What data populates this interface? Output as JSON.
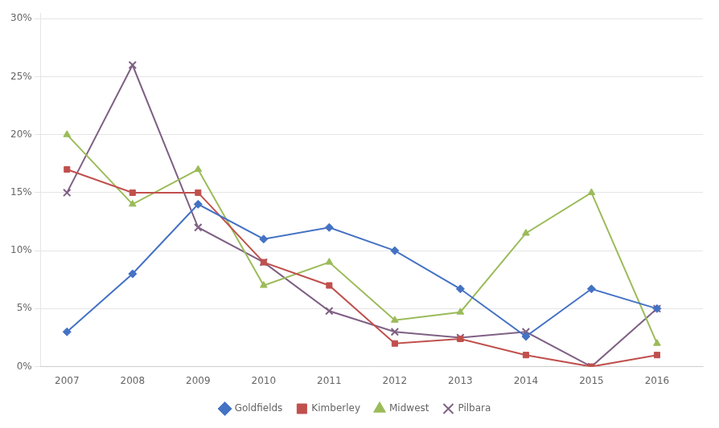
{
  "chart_data": {
    "type": "line",
    "x": [
      2007,
      2008,
      2009,
      2010,
      2011,
      2012,
      2013,
      2014,
      2015,
      2016
    ],
    "series": [
      {
        "name": "Goldfields",
        "color": "#4472C4",
        "marker": "diamond",
        "values": [
          0.03,
          0.08,
          0.14,
          0.11,
          0.12,
          0.1,
          0.067,
          0.026,
          0.067,
          0.05
        ]
      },
      {
        "name": "Kimberley",
        "color": "#C0504D",
        "marker": "square",
        "values": [
          0.17,
          0.15,
          0.15,
          0.09,
          0.07,
          0.02,
          0.024,
          0.01,
          0.0,
          0.01
        ]
      },
      {
        "name": "Midwest",
        "color": "#9BBB59",
        "marker": "triangle",
        "values": [
          0.2,
          0.14,
          0.17,
          0.07,
          0.09,
          0.04,
          0.047,
          0.115,
          0.15,
          0.02
        ]
      },
      {
        "name": "Pilbara",
        "color": "#7F6084",
        "marker": "x",
        "values": [
          0.15,
          0.26,
          0.12,
          0.09,
          0.048,
          0.03,
          0.025,
          0.03,
          0.0,
          0.05
        ]
      }
    ],
    "xlim": [
      2006.6,
      2016.7
    ],
    "xticks": [
      2007,
      2008,
      2009,
      2010,
      2011,
      2012,
      2013,
      2014,
      2015,
      2016
    ],
    "ylim": [
      0,
      0.305
    ],
    "yticks": [
      {
        "value": 0.0,
        "label": "0%"
      },
      {
        "value": 0.05,
        "label": "5%"
      },
      {
        "value": 0.1,
        "label": "10%"
      },
      {
        "value": 0.15,
        "label": "15%"
      },
      {
        "value": 0.2,
        "label": "20%"
      },
      {
        "value": 0.25,
        "label": "25%"
      },
      {
        "value": 0.3,
        "label": "30%"
      }
    ],
    "grid": true,
    "legend": "bottom"
  }
}
